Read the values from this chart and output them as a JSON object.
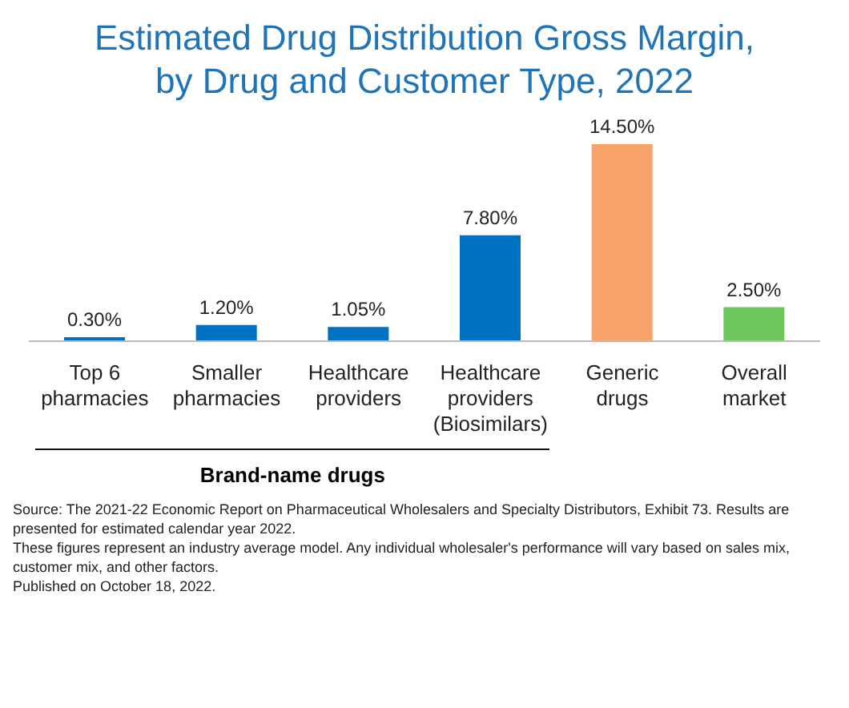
{
  "chart_data": {
    "type": "bar",
    "title": "Estimated Drug Distribution Gross Margin, by Drug and Customer Type, 2022",
    "categories": [
      "Top 6 pharmacies",
      "Smaller pharmacies",
      "Healthcare providers",
      "Healthcare providers (Biosimilars)",
      "Generic drugs",
      "Overall market"
    ],
    "values": [
      0.3,
      1.2,
      1.05,
      7.8,
      14.5,
      2.5
    ],
    "value_labels": [
      "0.30%",
      "1.20%",
      "1.05%",
      "7.80%",
      "14.50%",
      "2.50%"
    ],
    "colors": [
      "#0070c0",
      "#0070c0",
      "#0070c0",
      "#0070c0",
      "#f8a36a",
      "#6cc65c"
    ],
    "annotations": [
      "Brand-name drugs",
      "Source: The 2021-22 Economic Report on Pharmaceutical Wholesalers and Specialty Distributors, Exhibit 73. Results are presented for estimated calendar year 2022.",
      "These figures represent an industry average model. Any individual wholesaler's performance will vary based on sales mix, customer mix, and other factors.",
      "Published on October 18, 2022."
    ]
  }
}
